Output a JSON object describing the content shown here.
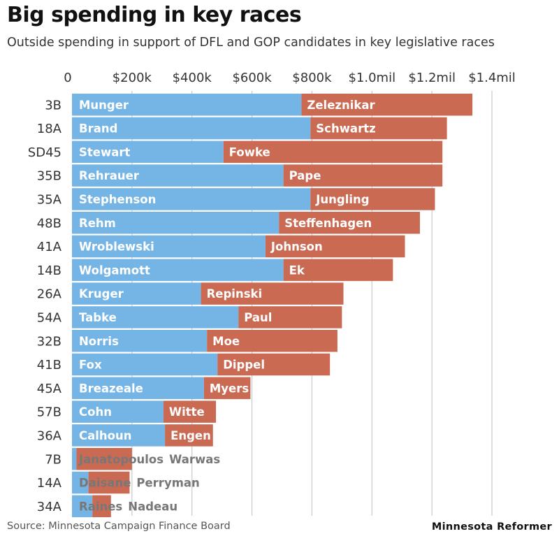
{
  "header": {
    "title": "Big spending in key races",
    "subtitle": "Outside spending in support of DFL and GOP candidates in key legislative races"
  },
  "footer": {
    "source": "Source:  Minnesota Campaign Finance Board",
    "brand": "Minnesota Reformer"
  },
  "colors": {
    "dfl": "#74b5e6",
    "gop": "#cb6a53",
    "grid": "#c9c9c9",
    "label_on_bar": "#ffffff",
    "label_off_bar": "#777777"
  },
  "chart_data": {
    "type": "bar",
    "orientation": "horizontal",
    "stacked": true,
    "xlim": [
      0,
      1400000
    ],
    "x_ticks": [
      0,
      200000,
      400000,
      600000,
      800000,
      1000000,
      1200000,
      1400000
    ],
    "x_tick_labels": [
      "0",
      "$200k",
      "$400k",
      "$600k",
      "$800k",
      "$1.0mil",
      "$1.2mil",
      "$1.4mil"
    ],
    "grid": true,
    "categories": [
      "3B",
      "18A",
      "SD45",
      "35B",
      "35A",
      "48B",
      "41A",
      "14B",
      "26A",
      "54A",
      "32B",
      "41B",
      "45A",
      "57B",
      "36A",
      "7B",
      "14A",
      "34A"
    ],
    "series": [
      {
        "party": "DFL",
        "values": [
          765000,
          795000,
          505000,
          705000,
          795000,
          690000,
          645000,
          705000,
          430000,
          555000,
          450000,
          485000,
          440000,
          305000,
          310000,
          15000,
          55000,
          68000
        ],
        "labels": [
          "Munger",
          "Brand",
          "Stewart",
          "Rehrauer",
          "Stephenson",
          "Rehm",
          "Wroblewski",
          "Wolgamott",
          "Kruger",
          "Tabke",
          "Norris",
          "Fox",
          "Breazeale",
          "Cohn",
          "Calhoun",
          "Janatopoulos",
          "Daisane",
          "Raines"
        ]
      },
      {
        "party": "GOP",
        "values": [
          570000,
          455000,
          730000,
          530000,
          415000,
          470000,
          465000,
          365000,
          475000,
          345000,
          435000,
          375000,
          155000,
          175000,
          160000,
          185000,
          137000,
          62000
        ],
        "labels": [
          "Zeleznikar",
          "Schwartz",
          "Fowke",
          "Pape",
          "Jungling",
          "Steffenhagen",
          "Johnson",
          "Ek",
          "Repinski",
          "Paul",
          "Moe",
          "Dippel",
          "Myers",
          "Witte",
          "Engen",
          "Warwas",
          "Perryman",
          "Nadeau"
        ]
      }
    ]
  }
}
